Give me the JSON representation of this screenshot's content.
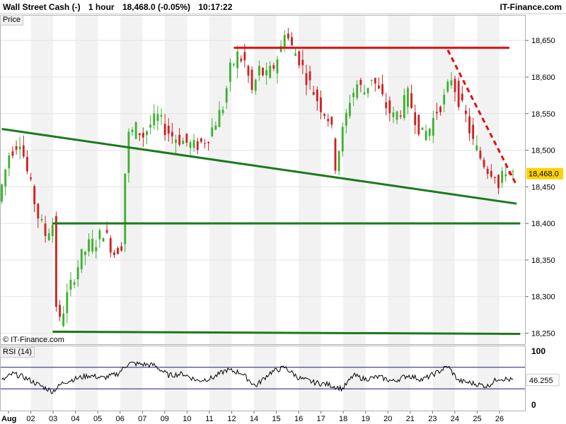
{
  "header": {
    "instrument": "Wall Street Cash (-)",
    "timeframe": "1 hour",
    "quote": "18,468.0 (-0.05%)",
    "time": "10:17:22",
    "brand": "IT-Finance.com"
  },
  "price_panel": {
    "label": "Price",
    "watermark": "© IT-Finance.com",
    "current_price_label": "18,468.0",
    "current_price": 18468
  },
  "rsi_panel": {
    "label": "RSI (14)",
    "current_value_label": "46.255",
    "current_value": 46.255,
    "levels": [
      70,
      30
    ],
    "scale_labels": [
      "100",
      "0"
    ]
  },
  "colors": {
    "bullish_candle": "#3cb030",
    "bearish_candle": "#d02020",
    "support_line": "#1a7a1a",
    "resistance_line": "#e01010",
    "rsi_line": "#000000",
    "current_price_badge": "#ffd200"
  },
  "chart_data": [
    {
      "type": "candlestick",
      "x_labels": [
        "Aug",
        "02",
        "03",
        "04",
        "05",
        "06",
        "07",
        "09",
        "10",
        "11",
        "12",
        "14",
        "15",
        "16",
        "17",
        "18",
        "19",
        "20",
        "21",
        "23",
        "24",
        "25",
        "26"
      ],
      "y_ticks": [
        18250,
        18300,
        18350,
        18400,
        18450,
        18500,
        18550,
        18600,
        18650
      ],
      "y_tick_labels": [
        "18,250",
        "18,300",
        "18,350",
        "18,400",
        "18,450",
        "18,500",
        "18,550",
        "18,600",
        "18,650"
      ],
      "ylim": [
        18235,
        18685
      ],
      "grid": "vertical-bands",
      "price_path": [
        [
          0,
          18430
        ],
        [
          3,
          18495
        ],
        [
          6,
          18515
        ],
        [
          8,
          18470
        ],
        [
          11,
          18410
        ],
        [
          13,
          18385
        ],
        [
          15,
          18400
        ],
        [
          16,
          18290
        ],
        [
          17,
          18265
        ],
        [
          19,
          18300
        ],
        [
          21,
          18330
        ],
        [
          23,
          18355
        ],
        [
          25,
          18370
        ],
        [
          27,
          18375
        ],
        [
          29,
          18390
        ],
        [
          32,
          18360
        ],
        [
          34,
          18372
        ],
        [
          35,
          18470
        ],
        [
          36,
          18520
        ],
        [
          38,
          18530
        ],
        [
          40,
          18520
        ],
        [
          42,
          18535
        ],
        [
          44,
          18545
        ],
        [
          46,
          18530
        ],
        [
          48,
          18520
        ],
        [
          50,
          18515
        ],
        [
          52,
          18510
        ],
        [
          54,
          18505
        ],
        [
          56,
          18510
        ],
        [
          58,
          18520
        ],
        [
          60,
          18540
        ],
        [
          62,
          18560
        ],
        [
          64,
          18610
        ],
        [
          66,
          18630
        ],
        [
          68,
          18620
        ],
        [
          70,
          18580
        ],
        [
          72,
          18610
        ],
        [
          74,
          18600
        ],
        [
          76,
          18615
        ],
        [
          78,
          18640
        ],
        [
          79,
          18665
        ],
        [
          81,
          18640
        ],
        [
          83,
          18625
        ],
        [
          85,
          18600
        ],
        [
          87,
          18580
        ],
        [
          89,
          18560
        ],
        [
          91,
          18545
        ],
        [
          92,
          18525
        ],
        [
          93,
          18480
        ],
        [
          95,
          18525
        ],
        [
          97,
          18570
        ],
        [
          99,
          18590
        ],
        [
          101,
          18580
        ],
        [
          103,
          18600
        ],
        [
          105,
          18580
        ],
        [
          107,
          18560
        ],
        [
          109,
          18545
        ],
        [
          111,
          18555
        ],
        [
          113,
          18575
        ],
        [
          115,
          18545
        ],
        [
          117,
          18520
        ],
        [
          119,
          18530
        ],
        [
          121,
          18555
        ],
        [
          123,
          18570
        ],
        [
          125,
          18600
        ],
        [
          127,
          18570
        ],
        [
          129,
          18545
        ],
        [
          131,
          18510
        ],
        [
          133,
          18490
        ],
        [
          135,
          18475
        ],
        [
          137,
          18470
        ],
        [
          138,
          18448
        ],
        [
          140,
          18475
        ],
        [
          141,
          18468
        ]
      ],
      "trendlines": [
        {
          "kind": "resistance",
          "style": "solid",
          "from": [
            64,
            18640
          ],
          "to": [
            140,
            18640
          ]
        },
        {
          "kind": "resistance",
          "style": "dashed",
          "from": [
            123,
            18637
          ],
          "to": [
            142,
            18452
          ]
        },
        {
          "kind": "support",
          "style": "solid",
          "from": [
            0,
            18529
          ],
          "to": [
            142,
            18427
          ]
        },
        {
          "kind": "support",
          "style": "solid",
          "from": [
            14,
            18400
          ],
          "to": [
            143,
            18400
          ]
        },
        {
          "kind": "support",
          "style": "solid",
          "from": [
            14,
            18252
          ],
          "to": [
            143,
            18249
          ]
        }
      ]
    },
    {
      "type": "line",
      "name": "RSI (14)",
      "ylim": [
        0,
        100
      ],
      "levels": [
        70,
        30
      ],
      "values": [
        [
          0,
          45
        ],
        [
          3,
          58
        ],
        [
          6,
          52
        ],
        [
          10,
          38
        ],
        [
          14,
          25
        ],
        [
          17,
          42
        ],
        [
          20,
          48
        ],
        [
          24,
          55
        ],
        [
          28,
          50
        ],
        [
          32,
          58
        ],
        [
          35,
          78
        ],
        [
          38,
          76
        ],
        [
          42,
          74
        ],
        [
          46,
          55
        ],
        [
          50,
          58
        ],
        [
          54,
          45
        ],
        [
          58,
          50
        ],
        [
          62,
          65
        ],
        [
          66,
          60
        ],
        [
          70,
          35
        ],
        [
          74,
          60
        ],
        [
          78,
          70
        ],
        [
          82,
          50
        ],
        [
          86,
          42
        ],
        [
          90,
          38
        ],
        [
          94,
          30
        ],
        [
          97,
          55
        ],
        [
          100,
          48
        ],
        [
          104,
          52
        ],
        [
          108,
          44
        ],
        [
          112,
          55
        ],
        [
          116,
          47
        ],
        [
          120,
          60
        ],
        [
          123,
          72
        ],
        [
          126,
          45
        ],
        [
          130,
          40
        ],
        [
          134,
          35
        ],
        [
          137,
          50
        ],
        [
          141,
          46
        ]
      ]
    }
  ]
}
